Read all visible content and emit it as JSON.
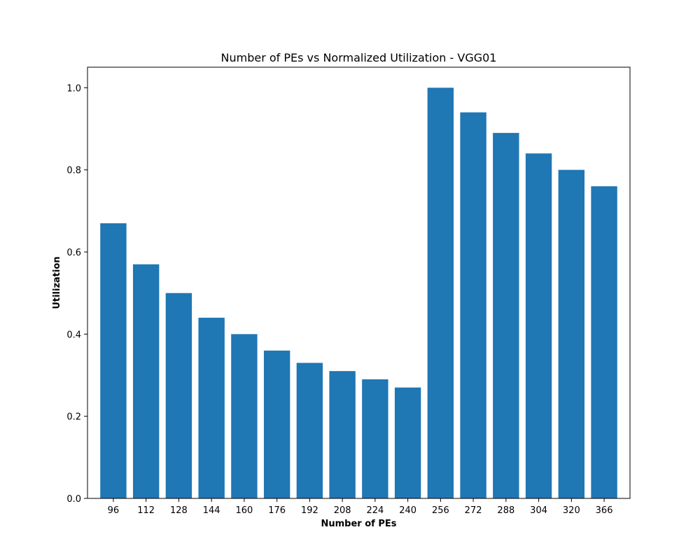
{
  "chart_data": {
    "type": "bar",
    "title": "Number of PEs vs Normalized Utilization - VGG01",
    "xlabel": "Number of PEs",
    "ylabel": "Utilization",
    "categories": [
      "96",
      "112",
      "128",
      "144",
      "160",
      "176",
      "192",
      "208",
      "224",
      "240",
      "256",
      "272",
      "288",
      "304",
      "320",
      "366"
    ],
    "values": [
      0.67,
      0.57,
      0.5,
      0.44,
      0.4,
      0.36,
      0.33,
      0.31,
      0.29,
      0.27,
      1.0,
      0.94,
      0.89,
      0.84,
      0.8,
      0.76
    ],
    "ylim": [
      0,
      1.05
    ],
    "yticks": [
      "0.0",
      "0.2",
      "0.4",
      "0.6",
      "0.8",
      "1.0"
    ],
    "bar_color": "#1f77b4",
    "grid": false,
    "legend": false
  }
}
